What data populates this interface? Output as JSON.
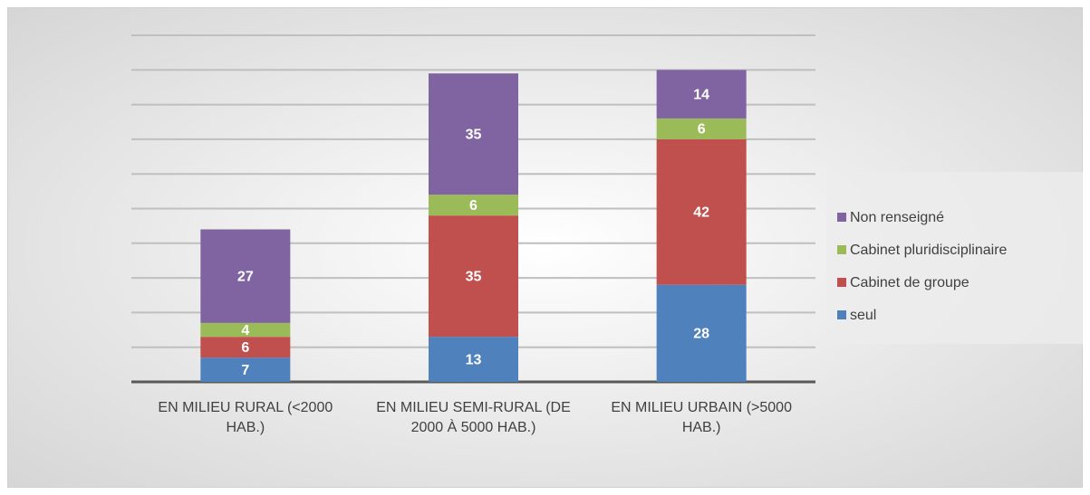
{
  "chart_data": {
    "type": "stacked_bar",
    "categories": [
      "EN MILIEU RURAL (<2000 HAB.)",
      "EN MILIEU SEMI-RURAL (DE 2000 À 5000 HAB.)",
      "EN MILIEU URBAIN (>5000 HAB.)"
    ],
    "series": [
      {
        "name": "seul",
        "color": "#4f81bd",
        "values": [
          7,
          13,
          28
        ]
      },
      {
        "name": "Cabinet de groupe",
        "color": "#c0504d",
        "values": [
          6,
          35,
          42
        ]
      },
      {
        "name": "Cabinet pluridisciplinaire",
        "color": "#9bbb59",
        "values": [
          4,
          6,
          6
        ]
      },
      {
        "name": "Non renseigné",
        "color": "#8064a2",
        "values": [
          27,
          35,
          14
        ]
      }
    ],
    "ylim": [
      0,
      100
    ],
    "yticks": [
      0,
      10,
      20,
      30,
      40,
      50,
      60,
      70,
      80,
      90,
      100
    ],
    "grid": true,
    "legend": "right"
  }
}
